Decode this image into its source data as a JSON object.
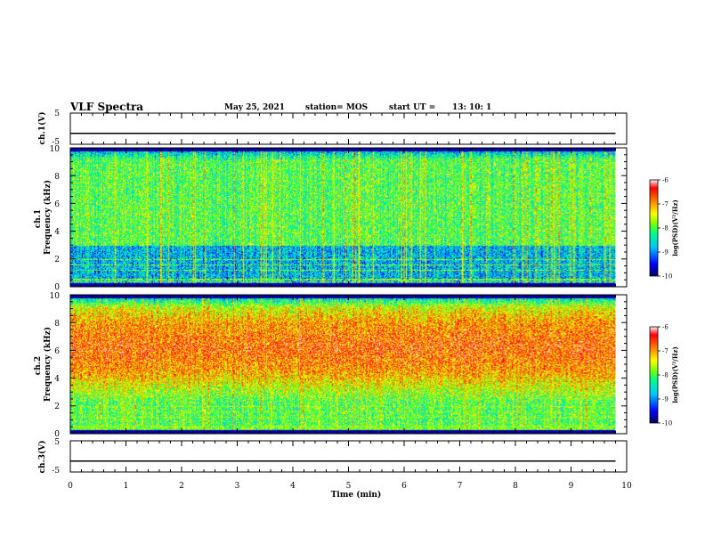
{
  "header": {
    "title": "VLF Spectra",
    "date": "May 25, 2021",
    "station": "station= MOS",
    "start_label": "start  UT  =",
    "start_time": "13: 10: 1"
  },
  "chart_data": [
    {
      "id": "ch1-voltage",
      "type": "line",
      "ylabel": "ch.1(V)",
      "xlim": [
        0,
        10
      ],
      "ylim": [
        -5,
        5
      ],
      "yticks": [
        "5",
        "-5"
      ],
      "series": [
        {
          "x": [
            0,
            9.8
          ],
          "y": [
            -1.5,
            -1.5
          ]
        }
      ]
    },
    {
      "id": "ch1-spectrogram",
      "type": "heatmap",
      "ylabel": "ch.1\nFrequency (kHz)",
      "xlim": [
        0,
        10
      ],
      "ylim": [
        0,
        10
      ],
      "yticks": [
        "0",
        "2",
        "4",
        "6",
        "8",
        "10"
      ],
      "data_xmax": 9.8,
      "band_kHz": [
        0.3,
        9.8
      ],
      "dominant_log_psd": -8.0,
      "colorbar": {
        "label": "log(PSD)(V²/Hz)",
        "range": [
          -10,
          -6
        ],
        "ticks": [
          "-6",
          "-7",
          "-8",
          "-9",
          "-10"
        ]
      }
    },
    {
      "id": "ch2-spectrogram",
      "type": "heatmap",
      "ylabel": "ch.2\nFrequency (kHz)",
      "xlim": [
        0,
        10
      ],
      "ylim": [
        0,
        10
      ],
      "yticks": [
        "0",
        "2",
        "4",
        "6",
        "8",
        "10"
      ],
      "data_xmax": 9.8,
      "band_kHz": [
        0.3,
        9.8
      ],
      "peak_band_kHz": [
        4.5,
        8.0
      ],
      "dominant_log_psd": -7.0,
      "colorbar": {
        "label": "log(PSD)(V²/Hz)",
        "range": [
          -10,
          -6
        ],
        "ticks": [
          "-6",
          "-7",
          "-8",
          "-9",
          "-10"
        ]
      }
    },
    {
      "id": "ch3-voltage",
      "type": "line",
      "ylabel": "ch.3(V)",
      "xlim": [
        0,
        10
      ],
      "ylim": [
        -5,
        5
      ],
      "yticks": [
        "5",
        "-5"
      ],
      "xticks": [
        "0",
        "1",
        "2",
        "3",
        "4",
        "5",
        "6",
        "7",
        "8",
        "9",
        "10"
      ],
      "xlabel": "Time (min)",
      "series": [
        {
          "x": [
            0,
            9.8
          ],
          "y": [
            -1.5,
            -1.5
          ]
        }
      ]
    }
  ],
  "colors": {
    "frame": "#000000",
    "colormap": [
      "#000060",
      "#0000ff",
      "#00c8ff",
      "#00ff80",
      "#80ff00",
      "#ffff00",
      "#ff8000",
      "#ff0000",
      "#ffffff"
    ]
  }
}
